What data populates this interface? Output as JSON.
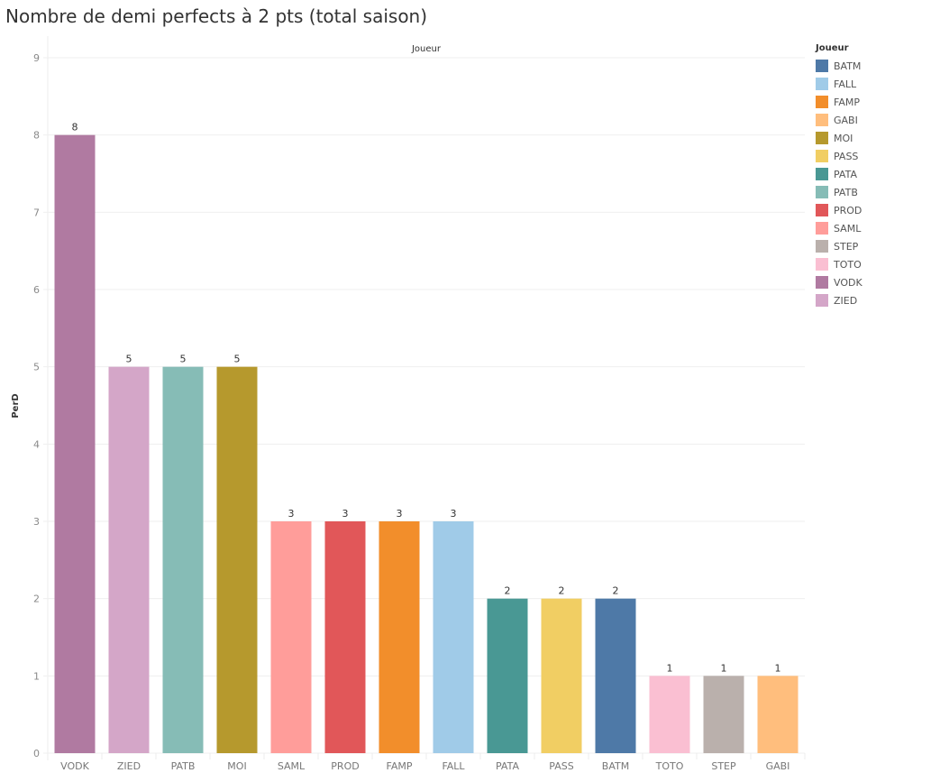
{
  "chart_data": {
    "type": "bar",
    "title": "Nombre de demi perfects à 2 pts (total saison)",
    "column_header": "Joueur",
    "xlabel": "",
    "ylabel": "PerD",
    "ylim": [
      0,
      9
    ],
    "yticks": [
      0,
      1,
      2,
      3,
      4,
      5,
      6,
      7,
      8,
      9
    ],
    "grid": true,
    "categories": [
      "VODK",
      "ZIED",
      "PATB",
      "MOI",
      "SAML",
      "PROD",
      "FAMP",
      "FALL",
      "PATA",
      "PASS",
      "BATM",
      "TOTO",
      "STEP",
      "GABI"
    ],
    "values": [
      8,
      5,
      5,
      5,
      3,
      3,
      3,
      3,
      2,
      2,
      2,
      1,
      1,
      1
    ],
    "data_labels": [
      "8",
      "5",
      "5",
      "5",
      "3",
      "3",
      "3",
      "3",
      "2",
      "2",
      "2",
      "1",
      "1",
      "1"
    ],
    "legend": {
      "title": "Joueur",
      "placement": "right",
      "entries": [
        {
          "label": "BATM",
          "color": "#4e79a7"
        },
        {
          "label": "FALL",
          "color": "#a0cbe8"
        },
        {
          "label": "FAMP",
          "color": "#f28e2b"
        },
        {
          "label": "GABI",
          "color": "#ffbe7d"
        },
        {
          "label": "MOI",
          "color": "#b6992d"
        },
        {
          "label": "PASS",
          "color": "#f1ce63"
        },
        {
          "label": "PATA",
          "color": "#499894"
        },
        {
          "label": "PATB",
          "color": "#86bcb6"
        },
        {
          "label": "PROD",
          "color": "#e15759"
        },
        {
          "label": "SAML",
          "color": "#ff9d9a"
        },
        {
          "label": "STEP",
          "color": "#bab0ac"
        },
        {
          "label": "TOTO",
          "color": "#fabfd2"
        },
        {
          "label": "VODK",
          "color": "#b07aa1"
        },
        {
          "label": "ZIED",
          "color": "#d4a6c8"
        }
      ]
    }
  }
}
